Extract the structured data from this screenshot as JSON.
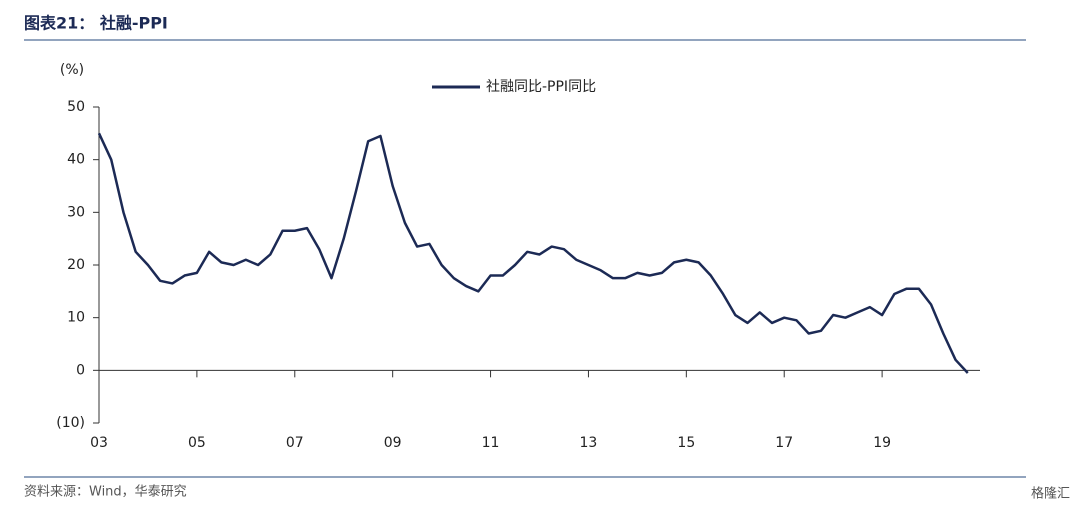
{
  "header": {
    "title": "图表21： 社融-PPI"
  },
  "chart_data": {
    "type": "line",
    "y_label": "(%)",
    "x": [
      3,
      3.25,
      3.5,
      3.75,
      4,
      4.25,
      4.5,
      4.75,
      5,
      5.25,
      5.5,
      5.75,
      6,
      6.25,
      6.5,
      6.75,
      7,
      7.25,
      7.5,
      7.75,
      8,
      8.25,
      8.5,
      8.75,
      9,
      9.25,
      9.5,
      9.75,
      10,
      10.25,
      10.5,
      10.75,
      11,
      11.25,
      11.5,
      11.75,
      12,
      12.25,
      12.5,
      12.75,
      13,
      13.25,
      13.5,
      13.75,
      14,
      14.25,
      14.5,
      14.75,
      15,
      15.25,
      15.5,
      15.75,
      16,
      16.25,
      16.5,
      16.75,
      17,
      17.25,
      17.5,
      17.75,
      18,
      18.25,
      18.5,
      18.75,
      19,
      19.25,
      19.5,
      19.75,
      20,
      20.25,
      20.5,
      20.75
    ],
    "series": [
      {
        "name": "社融同比-PPI同比",
        "color": "#1c2a55",
        "values": [
          45,
          40,
          30,
          22.5,
          20,
          17,
          16.5,
          18,
          18.5,
          22.5,
          20.5,
          20,
          21,
          20,
          22,
          26.5,
          26.5,
          27,
          23,
          17.5,
          25,
          34,
          43.5,
          44.5,
          35,
          28,
          23.5,
          24,
          20,
          17.5,
          16,
          15,
          18,
          18,
          20,
          22.5,
          22,
          23.5,
          23,
          21,
          20,
          19,
          17.5,
          17.5,
          18.5,
          18,
          18.5,
          20.5,
          21,
          20.5,
          18,
          14.5,
          10.5,
          9,
          11,
          9,
          10,
          9.5,
          7,
          7.5,
          10.5,
          10,
          11,
          12,
          10.5,
          14.5,
          15.5,
          15.5,
          12.5,
          7,
          2,
          -0.5
        ]
      }
    ],
    "xlim": [
      3,
      21
    ],
    "xticks": [
      {
        "value": 3,
        "label": "03"
      },
      {
        "value": 5,
        "label": "05"
      },
      {
        "value": 7,
        "label": "07"
      },
      {
        "value": 9,
        "label": "09"
      },
      11,
      13,
      15,
      17,
      19
    ],
    "ylim": [
      -10,
      50
    ],
    "yticks": [
      {
        "value": -10,
        "label": "(10)"
      },
      0,
      10,
      20,
      30,
      40,
      50
    ],
    "legend": "top"
  },
  "footer": {
    "source": "资料来源：Wind，华泰研究",
    "watermark": "格隆汇"
  }
}
